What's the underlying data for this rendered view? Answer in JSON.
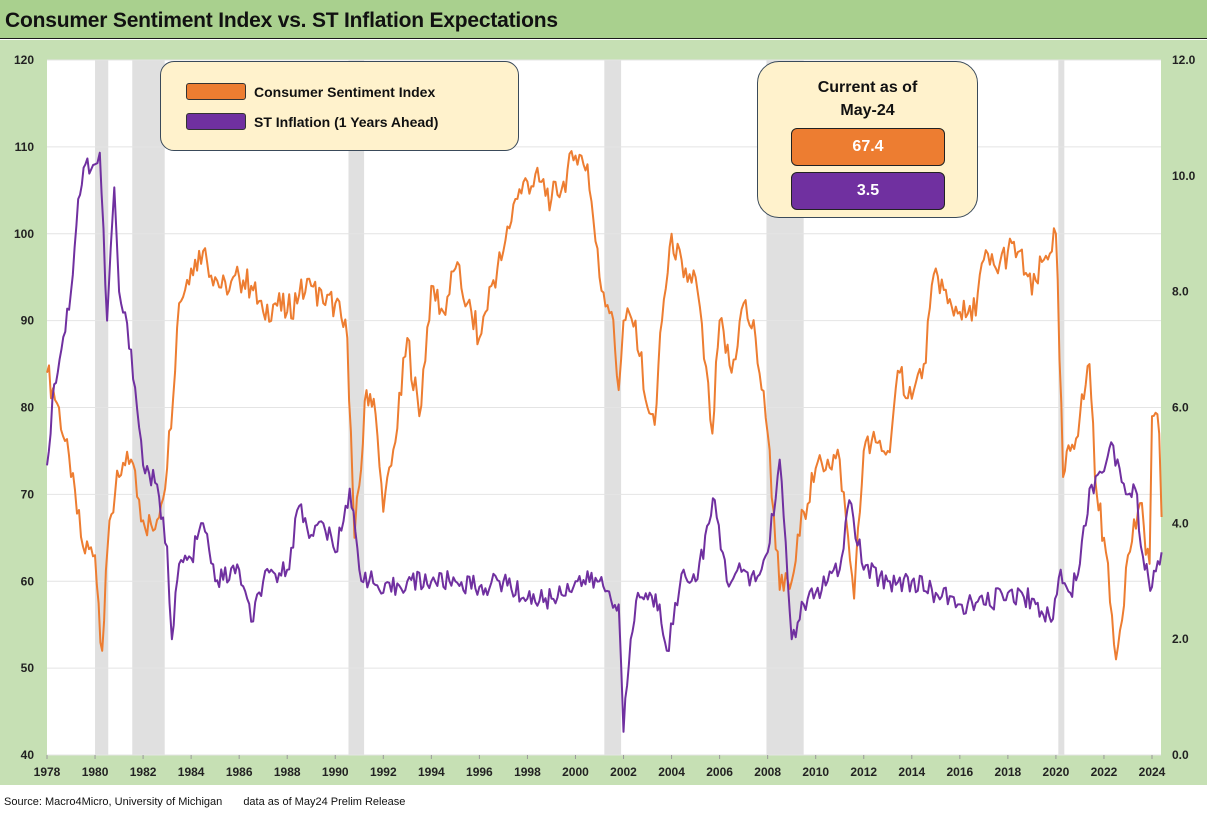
{
  "title": "Consumer Sentiment Index vs. ST Inflation Expectations",
  "footer": {
    "source": "Source: Macro4Micro, University of Michigan",
    "note": "data as of May24 Prelim Release"
  },
  "legend": {
    "items": [
      {
        "label": "Consumer Sentiment Index",
        "color": "#ed7d31"
      },
      {
        "label": "ST Inflation (1 Years Ahead)",
        "color": "#7030a0"
      }
    ]
  },
  "current": {
    "title_line1": "Current as of",
    "title_line2": "May-24",
    "sentiment": "67.4",
    "inflation": "3.5"
  },
  "chart_data": {
    "type": "line",
    "title": "Consumer Sentiment Index vs. ST Inflation Expectations",
    "xlim": [
      1978,
      2024.4
    ],
    "x_ticks": [
      "1978",
      "1980",
      "1982",
      "1984",
      "1986",
      "1988",
      "1990",
      "1992",
      "1994",
      "1996",
      "1998",
      "2000",
      "2002",
      "2004",
      "2006",
      "2008",
      "2010",
      "2012",
      "2014",
      "2016",
      "2018",
      "2020",
      "2022",
      "2024"
    ],
    "y_left": {
      "lim": [
        40,
        120
      ],
      "ticks": [
        "40",
        "50",
        "60",
        "70",
        "80",
        "90",
        "100",
        "110",
        "120"
      ]
    },
    "y_right": {
      "lim": [
        0,
        12
      ],
      "ticks": [
        "0.0",
        "2.0",
        "4.0",
        "6.0",
        "8.0",
        "10.0",
        "12.0"
      ]
    },
    "recessions": [
      [
        1980.0,
        1980.55
      ],
      [
        1981.55,
        1982.9
      ],
      [
        1990.55,
        1991.2
      ],
      [
        2001.2,
        2001.9
      ],
      [
        2007.95,
        2009.5
      ],
      [
        2020.1,
        2020.35
      ]
    ],
    "series": [
      {
        "name": "Consumer Sentiment Index",
        "axis": "left",
        "color": "#ed7d31",
        "points": [
          [
            1978.0,
            84
          ],
          [
            1978.5,
            80
          ],
          [
            1979.0,
            72
          ],
          [
            1979.5,
            64
          ],
          [
            1980.0,
            63
          ],
          [
            1980.3,
            52
          ],
          [
            1980.6,
            67
          ],
          [
            1981.0,
            72
          ],
          [
            1981.5,
            74
          ],
          [
            1982.0,
            67
          ],
          [
            1982.5,
            66
          ],
          [
            1983.0,
            73
          ],
          [
            1983.5,
            92
          ],
          [
            1984.0,
            96
          ],
          [
            1984.5,
            98
          ],
          [
            1985.0,
            95
          ],
          [
            1985.5,
            93
          ],
          [
            1986.0,
            95
          ],
          [
            1986.5,
            94
          ],
          [
            1987.0,
            91
          ],
          [
            1987.5,
            92
          ],
          [
            1988.0,
            91
          ],
          [
            1988.5,
            93
          ],
          [
            1989.0,
            94
          ],
          [
            1989.5,
            92
          ],
          [
            1990.0,
            92
          ],
          [
            1990.5,
            88
          ],
          [
            1990.8,
            65
          ],
          [
            1991.0,
            71
          ],
          [
            1991.3,
            82
          ],
          [
            1991.6,
            81
          ],
          [
            1992.0,
            68
          ],
          [
            1992.5,
            76
          ],
          [
            1993.0,
            88
          ],
          [
            1993.5,
            79
          ],
          [
            1994.0,
            94
          ],
          [
            1994.5,
            91
          ],
          [
            1995.0,
            96
          ],
          [
            1995.5,
            92
          ],
          [
            1996.0,
            88
          ],
          [
            1996.5,
            94
          ],
          [
            1997.0,
            98
          ],
          [
            1997.5,
            104
          ],
          [
            1998.0,
            106
          ],
          [
            1998.5,
            106
          ],
          [
            1999.0,
            104
          ],
          [
            1999.5,
            106
          ],
          [
            2000.0,
            109
          ],
          [
            2000.5,
            108
          ],
          [
            2001.0,
            95
          ],
          [
            2001.5,
            91
          ],
          [
            2001.8,
            82
          ],
          [
            2002.0,
            90
          ],
          [
            2002.5,
            90
          ],
          [
            2003.0,
            80
          ],
          [
            2003.3,
            78
          ],
          [
            2003.6,
            90
          ],
          [
            2004.0,
            100
          ],
          [
            2004.5,
            95
          ],
          [
            2005.0,
            95
          ],
          [
            2005.7,
            77
          ],
          [
            2006.0,
            90
          ],
          [
            2006.5,
            84
          ],
          [
            2007.0,
            92
          ],
          [
            2007.5,
            88
          ],
          [
            2008.0,
            77
          ],
          [
            2008.5,
            59
          ],
          [
            2009.0,
            60
          ],
          [
            2009.5,
            68
          ],
          [
            2010.0,
            73
          ],
          [
            2010.5,
            74
          ],
          [
            2011.0,
            74
          ],
          [
            2011.6,
            58
          ],
          [
            2012.0,
            75
          ],
          [
            2012.5,
            76
          ],
          [
            2013.0,
            75
          ],
          [
            2013.5,
            84
          ],
          [
            2014.0,
            81
          ],
          [
            2014.5,
            85
          ],
          [
            2015.0,
            96
          ],
          [
            2015.5,
            92
          ],
          [
            2016.0,
            91
          ],
          [
            2016.5,
            90
          ],
          [
            2017.0,
            97
          ],
          [
            2017.5,
            96
          ],
          [
            2018.0,
            98
          ],
          [
            2018.5,
            98
          ],
          [
            2019.0,
            93
          ],
          [
            2019.5,
            97
          ],
          [
            2020.0,
            100
          ],
          [
            2020.3,
            72
          ],
          [
            2020.6,
            75
          ],
          [
            2021.0,
            79
          ],
          [
            2021.4,
            85
          ],
          [
            2021.7,
            70
          ],
          [
            2022.0,
            65
          ],
          [
            2022.5,
            51
          ],
          [
            2023.0,
            63
          ],
          [
            2023.5,
            69
          ],
          [
            2023.9,
            62
          ],
          [
            2024.0,
            79
          ],
          [
            2024.3,
            77
          ],
          [
            2024.4,
            67.4
          ]
        ]
      },
      {
        "name": "ST Inflation (1 Years Ahead)",
        "axis": "right",
        "color": "#7030a0",
        "points": [
          [
            1978.0,
            5.0
          ],
          [
            1978.3,
            6.4
          ],
          [
            1978.6,
            7.0
          ],
          [
            1979.0,
            8.0
          ],
          [
            1979.3,
            9.6
          ],
          [
            1979.6,
            10.2
          ],
          [
            1980.0,
            10.2
          ],
          [
            1980.2,
            10.4
          ],
          [
            1980.5,
            7.5
          ],
          [
            1980.8,
            9.8
          ],
          [
            1981.0,
            8.0
          ],
          [
            1981.5,
            7.0
          ],
          [
            1982.0,
            5.0
          ],
          [
            1982.5,
            4.7
          ],
          [
            1983.0,
            3.6
          ],
          [
            1983.2,
            2.0
          ],
          [
            1983.5,
            3.3
          ],
          [
            1984.0,
            3.4
          ],
          [
            1984.5,
            4.0
          ],
          [
            1985.0,
            3.0
          ],
          [
            1986.0,
            3.2
          ],
          [
            1986.5,
            2.3
          ],
          [
            1987.0,
            3.0
          ],
          [
            1988.0,
            3.2
          ],
          [
            1988.5,
            4.3
          ],
          [
            1989.0,
            3.8
          ],
          [
            1989.5,
            4.0
          ],
          [
            1990.0,
            3.5
          ],
          [
            1990.6,
            4.6
          ],
          [
            1991.0,
            3.2
          ],
          [
            1992.0,
            2.8
          ],
          [
            1993.0,
            3.0
          ],
          [
            1994.0,
            3.0
          ],
          [
            1995.0,
            3.0
          ],
          [
            1996.0,
            2.9
          ],
          [
            1997.0,
            3.0
          ],
          [
            1998.0,
            2.7
          ],
          [
            1999.0,
            2.7
          ],
          [
            2000.0,
            3.0
          ],
          [
            2001.0,
            3.0
          ],
          [
            2001.8,
            2.6
          ],
          [
            2002.0,
            0.4
          ],
          [
            2002.3,
            2.0
          ],
          [
            2002.6,
            2.8
          ],
          [
            2003.5,
            2.6
          ],
          [
            2003.8,
            1.8
          ],
          [
            2004.5,
            3.2
          ],
          [
            2005.0,
            3.0
          ],
          [
            2005.8,
            4.4
          ],
          [
            2006.3,
            3.0
          ],
          [
            2007.0,
            3.2
          ],
          [
            2007.5,
            3.0
          ],
          [
            2008.0,
            3.5
          ],
          [
            2008.5,
            5.1
          ],
          [
            2009.0,
            2.0
          ],
          [
            2009.5,
            2.6
          ],
          [
            2010.0,
            2.8
          ],
          [
            2011.0,
            3.2
          ],
          [
            2011.4,
            4.4
          ],
          [
            2012.0,
            3.2
          ],
          [
            2013.0,
            3.0
          ],
          [
            2014.0,
            3.0
          ],
          [
            2015.0,
            2.8
          ],
          [
            2016.0,
            2.6
          ],
          [
            2017.0,
            2.6
          ],
          [
            2018.0,
            2.8
          ],
          [
            2019.0,
            2.7
          ],
          [
            2019.8,
            2.3
          ],
          [
            2020.2,
            3.2
          ],
          [
            2020.6,
            2.8
          ],
          [
            2021.0,
            3.3
          ],
          [
            2021.4,
            4.6
          ],
          [
            2022.0,
            4.9
          ],
          [
            2022.3,
            5.4
          ],
          [
            2023.0,
            4.5
          ],
          [
            2023.3,
            4.6
          ],
          [
            2023.7,
            3.2
          ],
          [
            2024.0,
            2.9
          ],
          [
            2024.4,
            3.5
          ]
        ]
      }
    ]
  }
}
